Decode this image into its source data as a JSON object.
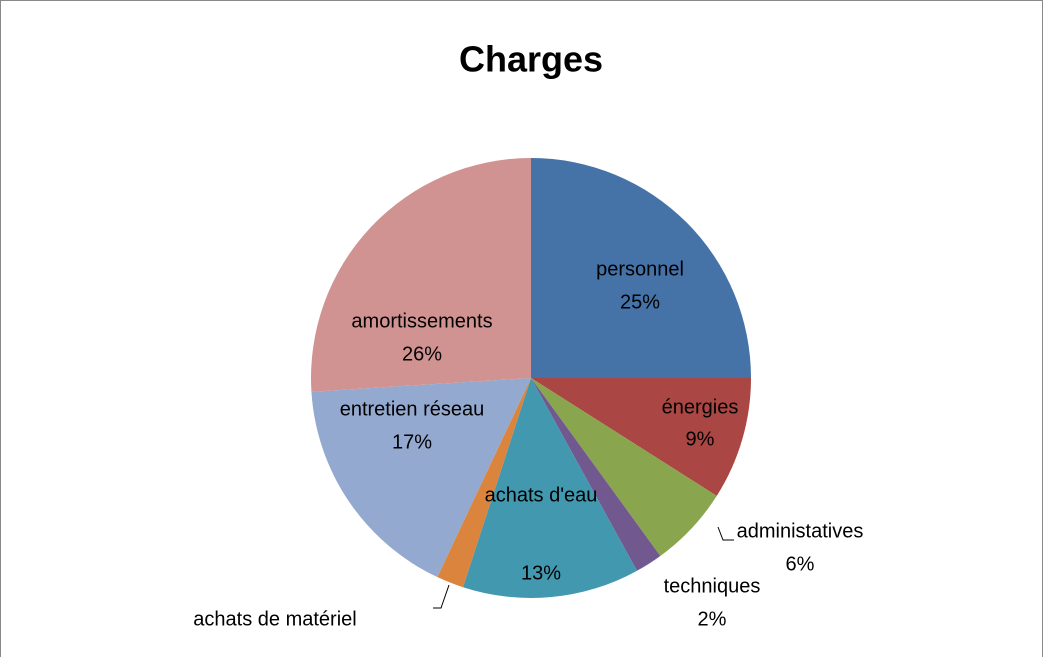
{
  "chart_data": {
    "type": "pie",
    "title": "Charges",
    "categories": [
      "personnel",
      "énergies",
      "administatives",
      "techniques",
      "achats d'eau",
      "achats de matériel",
      "entretien réseau",
      "amortissements"
    ],
    "values": [
      25,
      9,
      6,
      2,
      13,
      2,
      17,
      26
    ],
    "value_labels": [
      "25%",
      "9%",
      "6%",
      "2%",
      "13%",
      null,
      "17%",
      "26%"
    ],
    "colors": [
      "#4572a7",
      "#aa4643",
      "#89a54e",
      "#71588f",
      "#4198af",
      "#db843d",
      "#93a9cf",
      "#d19392"
    ]
  }
}
